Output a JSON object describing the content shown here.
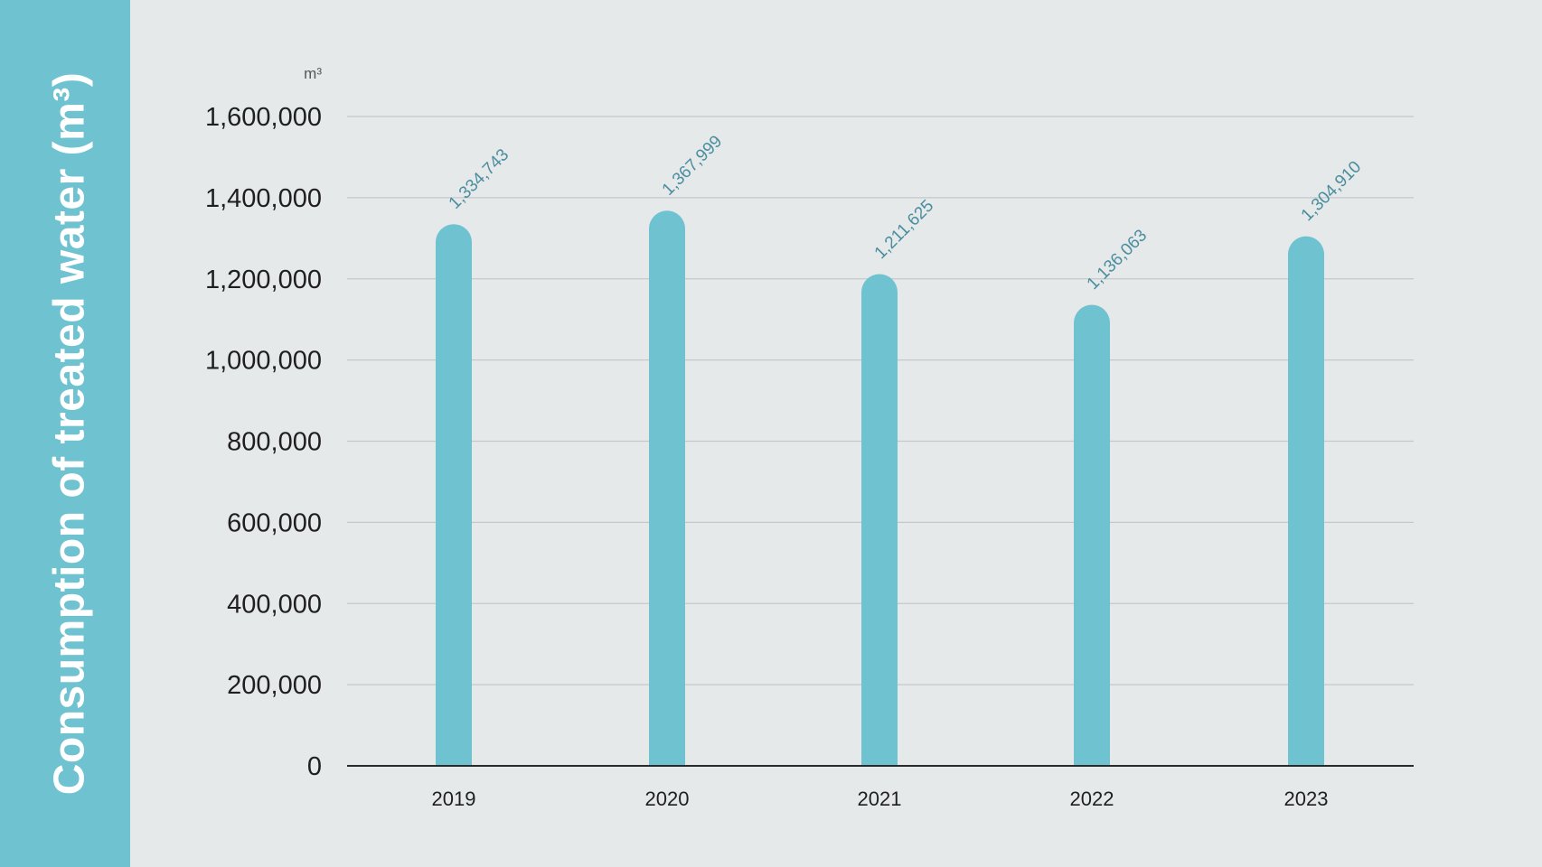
{
  "side_title": "Consumption of treated water (m³)",
  "colors": {
    "background": "#e6e9ea",
    "side_panel": "#6fc2d0",
    "bar": "#6fc2d0",
    "data_label": "#4a8e9e",
    "grid": "#c4c8ca",
    "axis": "#2a2a2a"
  },
  "chart_data": {
    "type": "bar",
    "title": "Consumption of treated water (m³)",
    "unit": "m³",
    "categories": [
      "2019",
      "2020",
      "2021",
      "2022",
      "2023"
    ],
    "values": [
      1334743,
      1367999,
      1211625,
      1136063,
      1304910
    ],
    "value_labels": [
      "1,334,743",
      "1,367,999",
      "1,211,625",
      "1,136,063",
      "1,304,910"
    ],
    "ylim": [
      0,
      1600000
    ],
    "yticks": [
      0,
      200000,
      400000,
      600000,
      800000,
      1000000,
      1200000,
      1400000,
      1600000
    ],
    "ytick_labels": [
      "0",
      "200,000",
      "400,000",
      "600,000",
      "800,000",
      "1,000,000",
      "1,200,000",
      "1,400,000",
      "1,600,000"
    ],
    "grid": true,
    "legend": "none"
  }
}
